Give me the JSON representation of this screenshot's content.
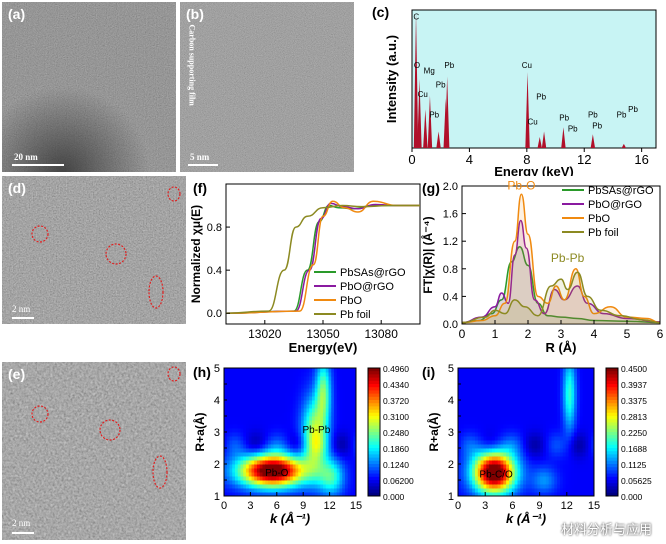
{
  "panels": {
    "a": {
      "label": "(a)",
      "scale": "20 nm"
    },
    "b": {
      "label": "(b)",
      "scale": "5 nm",
      "side_text": "Carbon supporting film"
    },
    "d": {
      "label": "(d)",
      "scale": "2 nm"
    },
    "e": {
      "label": "(e)",
      "scale": "2 nm"
    },
    "c": {
      "label": "(c)"
    },
    "f": {
      "label": "(f)"
    },
    "g": {
      "label": "(g)"
    },
    "h": {
      "label": "(h)"
    },
    "i": {
      "label": "(i)"
    }
  },
  "colors": {
    "green": "#2a9a2a",
    "purple": "#8a1aa0",
    "orange": "#f08a10",
    "olive": "#8c8a22",
    "eds_bar": "#b0102a",
    "eds_bg": "#c8f4f4"
  },
  "watermark": "材料分析与应用",
  "chart_data": [
    {
      "id": "c",
      "type": "bar",
      "title": "",
      "xlabel": "Energy (keV)",
      "ylabel": "Intensity (a.u.)",
      "xlim": [
        0,
        17
      ],
      "ylim": [
        0,
        1
      ],
      "xticks": [
        "0",
        "4",
        "8",
        "12",
        "16"
      ],
      "peaks": [
        {
          "x": 0.28,
          "y": 0.98,
          "label": "C"
        },
        {
          "x": 0.52,
          "y": 0.5,
          "label": "O"
        },
        {
          "x": 0.93,
          "y": 0.28,
          "label": "Cu"
        },
        {
          "x": 1.25,
          "y": 0.38,
          "label": "Mg"
        },
        {
          "x": 1.85,
          "y": 0.12,
          "label": "Pb"
        },
        {
          "x": 2.35,
          "y": 0.36,
          "label": "Pb"
        },
        {
          "x": 2.45,
          "y": 0.52,
          "label": "Pb"
        },
        {
          "x": 8.05,
          "y": 0.55,
          "label": "Cu"
        },
        {
          "x": 8.9,
          "y": 0.08,
          "label": "Cu"
        },
        {
          "x": 9.2,
          "y": 0.12,
          "label": "Pb"
        },
        {
          "x": 10.55,
          "y": 0.15,
          "label": "Pb"
        },
        {
          "x": 12.6,
          "y": 0.1,
          "label": "Pb"
        },
        {
          "x": 14.76,
          "y": 0.03,
          "label": "Pb"
        }
      ],
      "peak_labels": [
        {
          "text": "C",
          "x": 0.3,
          "y": 0.93
        },
        {
          "text": "O",
          "x": 0.35,
          "y": 0.58
        },
        {
          "text": "Mg",
          "x": 1.2,
          "y": 0.54
        },
        {
          "text": "Pb",
          "x": 2.6,
          "y": 0.58
        },
        {
          "text": "Cu",
          "x": 0.75,
          "y": 0.37
        },
        {
          "text": "Pb",
          "x": 2.0,
          "y": 0.44
        },
        {
          "text": "Pb",
          "x": 1.55,
          "y": 0.22
        },
        {
          "text": "Cu",
          "x": 8.0,
          "y": 0.58
        },
        {
          "text": "Pb",
          "x": 9.0,
          "y": 0.35
        },
        {
          "text": "Cu",
          "x": 8.4,
          "y": 0.17
        },
        {
          "text": "Pb",
          "x": 10.6,
          "y": 0.2
        },
        {
          "text": "Pb",
          "x": 11.2,
          "y": 0.12
        },
        {
          "text": "Pb",
          "x": 12.6,
          "y": 0.22
        },
        {
          "text": "Pb",
          "x": 12.9,
          "y": 0.14
        },
        {
          "text": "Pb",
          "x": 14.6,
          "y": 0.22
        },
        {
          "text": "Pb",
          "x": 15.4,
          "y": 0.26
        }
      ]
    },
    {
      "id": "f",
      "type": "line",
      "xlabel": "Energy(eV)",
      "ylabel": "Normalized χμ(E)",
      "xlim": [
        13000,
        13100
      ],
      "ylim": [
        -0.1,
        1.2
      ],
      "xticks": [
        13020,
        13050,
        13080
      ],
      "yticks": [
        0.0,
        0.4,
        0.8
      ],
      "legend": "bottom-right",
      "series": [
        {
          "name": "PbSAs@rGO",
          "color": "green",
          "edge": 13042,
          "points": [
            [
              13000,
              0
            ],
            [
              13035,
              0.02
            ],
            [
              13042,
              0.4
            ],
            [
              13048,
              0.85
            ],
            [
              13053,
              1.0
            ],
            [
              13058,
              0.98
            ],
            [
              13066,
              0.97
            ],
            [
              13075,
              1.0
            ],
            [
              13085,
              1.0
            ],
            [
              13100,
              1.0
            ]
          ]
        },
        {
          "name": "PbO@rGO",
          "color": "purple",
          "edge": 13043,
          "points": [
            [
              13000,
              0
            ],
            [
              13036,
              0.02
            ],
            [
              13043,
              0.4
            ],
            [
              13049,
              0.88
            ],
            [
              13054,
              1.02
            ],
            [
              13060,
              0.99
            ],
            [
              13068,
              0.97
            ],
            [
              13077,
              1.01
            ],
            [
              13087,
              1.0
            ],
            [
              13100,
              1.0
            ]
          ]
        },
        {
          "name": "PbO",
          "color": "orange",
          "edge": 13045,
          "points": [
            [
              13000,
              0
            ],
            [
              13038,
              0.02
            ],
            [
              13045,
              0.45
            ],
            [
              13050,
              0.9
            ],
            [
              13055,
              1.04
            ],
            [
              13061,
              0.98
            ],
            [
              13068,
              0.94
            ],
            [
              13076,
              1.04
            ],
            [
              13088,
              1.0
            ],
            [
              13100,
              1.0
            ]
          ]
        },
        {
          "name": "Pb foil",
          "color": "olive",
          "edge": 13030,
          "points": [
            [
              13000,
              0
            ],
            [
              13022,
              0.02
            ],
            [
              13030,
              0.4
            ],
            [
              13036,
              0.8
            ],
            [
              13042,
              0.9
            ],
            [
              13050,
              0.98
            ],
            [
              13060,
              1.0
            ],
            [
              13070,
              0.99
            ],
            [
              13085,
              1.0
            ],
            [
              13100,
              1.0
            ]
          ]
        }
      ]
    },
    {
      "id": "g",
      "type": "line",
      "xlabel": "R (Å)",
      "ylabel": "FT|χ(R)| (Å⁻⁴)",
      "xlim": [
        0,
        6
      ],
      "ylim": [
        0,
        2.0
      ],
      "xticks": [
        0,
        1,
        2,
        3,
        4,
        5,
        6
      ],
      "yticks": [
        0.0,
        0.4,
        0.8,
        1.2,
        1.6,
        2.0
      ],
      "annotations": [
        {
          "text": "Pb-O",
          "x": 1.8,
          "y": 1.95
        },
        {
          "text": "Pb-Pb",
          "x": 3.2,
          "y": 0.9
        }
      ],
      "legend": "top-right",
      "series": [
        {
          "name": "PbSAs@rGO",
          "color": "green",
          "points": [
            [
              0,
              0.02
            ],
            [
              0.5,
              0.05
            ],
            [
              0.9,
              0.15
            ],
            [
              1.2,
              0.35
            ],
            [
              1.5,
              0.9
            ],
            [
              1.75,
              1.12
            ],
            [
              2.0,
              0.85
            ],
            [
              2.3,
              0.3
            ],
            [
              2.6,
              0.12
            ],
            [
              3.0,
              0.1
            ],
            [
              3.5,
              0.08
            ],
            [
              4.0,
              0.05
            ],
            [
              5,
              0.04
            ],
            [
              6,
              0.02
            ]
          ]
        },
        {
          "name": "PbO@rGO",
          "color": "purple",
          "points": [
            [
              0,
              0.02
            ],
            [
              0.6,
              0.1
            ],
            [
              1.0,
              0.25
            ],
            [
              1.2,
              0.45
            ],
            [
              1.4,
              0.3
            ],
            [
              1.6,
              1.0
            ],
            [
              1.78,
              1.5
            ],
            [
              1.95,
              1.1
            ],
            [
              2.2,
              0.35
            ],
            [
              2.5,
              0.15
            ],
            [
              2.8,
              0.5
            ],
            [
              3.1,
              0.35
            ],
            [
              3.5,
              0.55
            ],
            [
              3.8,
              0.3
            ],
            [
              4.3,
              0.15
            ],
            [
              5,
              0.08
            ],
            [
              6,
              0.03
            ]
          ]
        },
        {
          "name": "PbO",
          "color": "orange",
          "points": [
            [
              0,
              0.02
            ],
            [
              0.6,
              0.05
            ],
            [
              1.0,
              0.12
            ],
            [
              1.3,
              0.3
            ],
            [
              1.6,
              1.2
            ],
            [
              1.8,
              1.88
            ],
            [
              2.0,
              1.3
            ],
            [
              2.3,
              0.4
            ],
            [
              2.6,
              0.3
            ],
            [
              2.85,
              0.55
            ],
            [
              3.1,
              0.35
            ],
            [
              3.45,
              0.8
            ],
            [
              3.7,
              0.4
            ],
            [
              4.0,
              0.15
            ],
            [
              4.5,
              0.25
            ],
            [
              5.0,
              0.1
            ],
            [
              5.6,
              0.08
            ],
            [
              6,
              0.02
            ]
          ]
        },
        {
          "name": "Pb foil",
          "color": "olive",
          "points": [
            [
              0,
              0.02
            ],
            [
              0.7,
              0.1
            ],
            [
              1.0,
              0.2
            ],
            [
              1.3,
              0.15
            ],
            [
              1.6,
              0.35
            ],
            [
              1.9,
              0.25
            ],
            [
              2.3,
              0.12
            ],
            [
              2.7,
              0.55
            ],
            [
              3.0,
              0.65
            ],
            [
              3.2,
              0.5
            ],
            [
              3.5,
              0.75
            ],
            [
              3.8,
              0.4
            ],
            [
              4.2,
              0.2
            ],
            [
              4.8,
              0.12
            ],
            [
              5.5,
              0.06
            ],
            [
              6,
              0.02
            ]
          ]
        }
      ]
    },
    {
      "id": "h",
      "type": "heatmap",
      "xlabel": "k (Å⁻¹)",
      "ylabel": "R+a(Å)",
      "xlim": [
        0,
        15
      ],
      "ylim": [
        1,
        5
      ],
      "xticks": [
        0,
        3,
        6,
        9,
        12,
        15
      ],
      "yticks": [
        1,
        1.5,
        2,
        2.5,
        3,
        3.5,
        4,
        4.5,
        5
      ],
      "colorbar": [
        "0.4960",
        "0.4340",
        "0.3720",
        "0.3100",
        "0.2480",
        "0.1860",
        "0.1240",
        "0.06200",
        "0.000"
      ],
      "annotations": [
        {
          "text": "Pb-O",
          "x": 6.0,
          "y": 1.75
        },
        {
          "text": "Pb-Pb",
          "x": 10.5,
          "y": 3.1
        }
      ],
      "blobs": [
        {
          "k": 5.5,
          "r": 1.8,
          "amp": 1.0,
          "sk": 2.6,
          "sr": 0.35
        },
        {
          "k": 10.3,
          "r": 2.9,
          "amp": 0.45,
          "sk": 1.0,
          "sr": 0.8
        },
        {
          "k": 11.3,
          "r": 4.3,
          "amp": 0.35,
          "sk": 0.6,
          "sr": 0.7
        },
        {
          "k": 12.2,
          "r": 1.6,
          "amp": 0.3,
          "sk": 1.0,
          "sr": 0.4
        }
      ]
    },
    {
      "id": "i",
      "type": "heatmap",
      "xlabel": "k (Å⁻¹)",
      "ylabel": "R+a(Å)",
      "xlim": [
        0,
        15
      ],
      "ylim": [
        1,
        5
      ],
      "xticks": [
        0,
        3,
        6,
        9,
        12,
        15
      ],
      "yticks": [
        1,
        1.5,
        2,
        2.5,
        3,
        3.5,
        4,
        4.5,
        5
      ],
      "colorbar": [
        "0.4500",
        "0.3937",
        "0.3375",
        "0.2813",
        "0.2250",
        "0.1688",
        "0.1125",
        "0.05625",
        "0.000"
      ],
      "annotations": [
        {
          "text": "Pb-C/O",
          "x": 4.2,
          "y": 1.7
        }
      ],
      "blobs": [
        {
          "k": 4.0,
          "r": 1.75,
          "amp": 1.0,
          "sk": 1.6,
          "sr": 0.45
        },
        {
          "k": 12.3,
          "r": 4.2,
          "amp": 0.3,
          "sk": 0.5,
          "sr": 0.8
        },
        {
          "k": 9.5,
          "r": 1.5,
          "amp": 0.15,
          "sk": 1.0,
          "sr": 0.3
        }
      ]
    }
  ]
}
